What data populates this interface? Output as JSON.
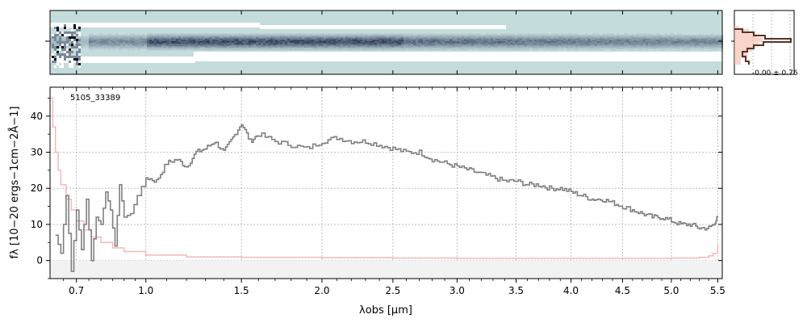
{
  "chart_data": [
    {
      "panel": "2d-spectrum",
      "type": "heatmap",
      "description_colors": {
        "background": "#c5dcdc",
        "trace": "#4a4a6a"
      }
    },
    {
      "panel": "profile",
      "type": "line",
      "annotation": "-0.00 ± 0.76",
      "colors": {
        "model": "#f4b8a8",
        "data": "#5a3228"
      }
    },
    {
      "panel": "1d-spectrum",
      "type": "line",
      "object_id": "5105_33389",
      "xlabel": "λobs [μm]",
      "ylabel": "fλ [10−20 ergs−1cm−2Å−1]",
      "xlim": [
        0.6,
        5.55
      ],
      "ylim": [
        -5,
        48
      ],
      "x_scale": "sqrt-like",
      "x_ticks": [
        0.7,
        1.0,
        1.5,
        2.0,
        2.5,
        3.0,
        3.5,
        4.0,
        4.5,
        5.0,
        5.5
      ],
      "x_tick_labels": [
        "0.7",
        "1.0",
        "1.5",
        "2.0",
        "2.5",
        "3.0",
        "3.5",
        "4.0",
        "4.5",
        "5.0",
        "5.5"
      ],
      "y_ticks": [
        0,
        10,
        20,
        30,
        40
      ],
      "y_tick_labels": [
        "0",
        "10",
        "20",
        "30",
        "40"
      ],
      "grid": true,
      "series": [
        {
          "role": "flux",
          "color": "#808080",
          "x": [
            0.62,
            0.64,
            0.66,
            0.68,
            0.7,
            0.72,
            0.74,
            0.76,
            0.78,
            0.8,
            0.82,
            0.84,
            0.86,
            0.88,
            0.9,
            0.93,
            0.96,
            1.0,
            1.05,
            1.1,
            1.15,
            1.2,
            1.25,
            1.3,
            1.35,
            1.4,
            1.45,
            1.5,
            1.55,
            1.6,
            1.7,
            1.8,
            1.9,
            2.0,
            2.1,
            2.2,
            2.3,
            2.4,
            2.5,
            2.6,
            2.7,
            2.8,
            2.9,
            3.0,
            3.1,
            3.2,
            3.3,
            3.4,
            3.5,
            3.6,
            3.7,
            3.8,
            3.9,
            4.0,
            4.1,
            4.2,
            4.3,
            4.4,
            4.5,
            4.6,
            4.7,
            4.8,
            4.9,
            5.0,
            5.1,
            5.2,
            5.3,
            5.4,
            5.45,
            5.5
          ],
          "y": [
            7,
            2,
            18,
            -3,
            14,
            3,
            17,
            0,
            12,
            10,
            19,
            14,
            4,
            21,
            12,
            13,
            18,
            23,
            22,
            27,
            28,
            26,
            30,
            31,
            33,
            30,
            34,
            38,
            33,
            35,
            33,
            32,
            31,
            33,
            34,
            33,
            33,
            32,
            31,
            30,
            30,
            28,
            27,
            26,
            25,
            24,
            23,
            22,
            22,
            21,
            21,
            20,
            20,
            19,
            18,
            17,
            17,
            16,
            15,
            14,
            13,
            12,
            12,
            11,
            10,
            10,
            9,
            9,
            10,
            12
          ]
        },
        {
          "role": "error",
          "color": "#f4b8b8",
          "x": [
            0.6,
            0.61,
            0.62,
            0.63,
            0.64,
            0.66,
            0.68,
            0.7,
            0.73,
            0.76,
            0.8,
            0.85,
            0.9,
            1.0,
            1.2,
            1.5,
            2.0,
            2.5,
            3.0,
            3.5,
            4.0,
            4.5,
            5.0,
            5.3,
            5.4,
            5.45,
            5.5
          ],
          "y": [
            45,
            37,
            30,
            25,
            21,
            17,
            14,
            11,
            8.5,
            6.5,
            5,
            3.5,
            2.5,
            1.5,
            1,
            0.9,
            0.8,
            0.7,
            0.6,
            0.6,
            0.6,
            0.6,
            0.7,
            0.9,
            1.3,
            2.0,
            4.5
          ]
        }
      ]
    }
  ],
  "colors": {
    "spine": "#000000",
    "grid": "#b0b0b0",
    "zero_band": "#f2f2f2"
  }
}
